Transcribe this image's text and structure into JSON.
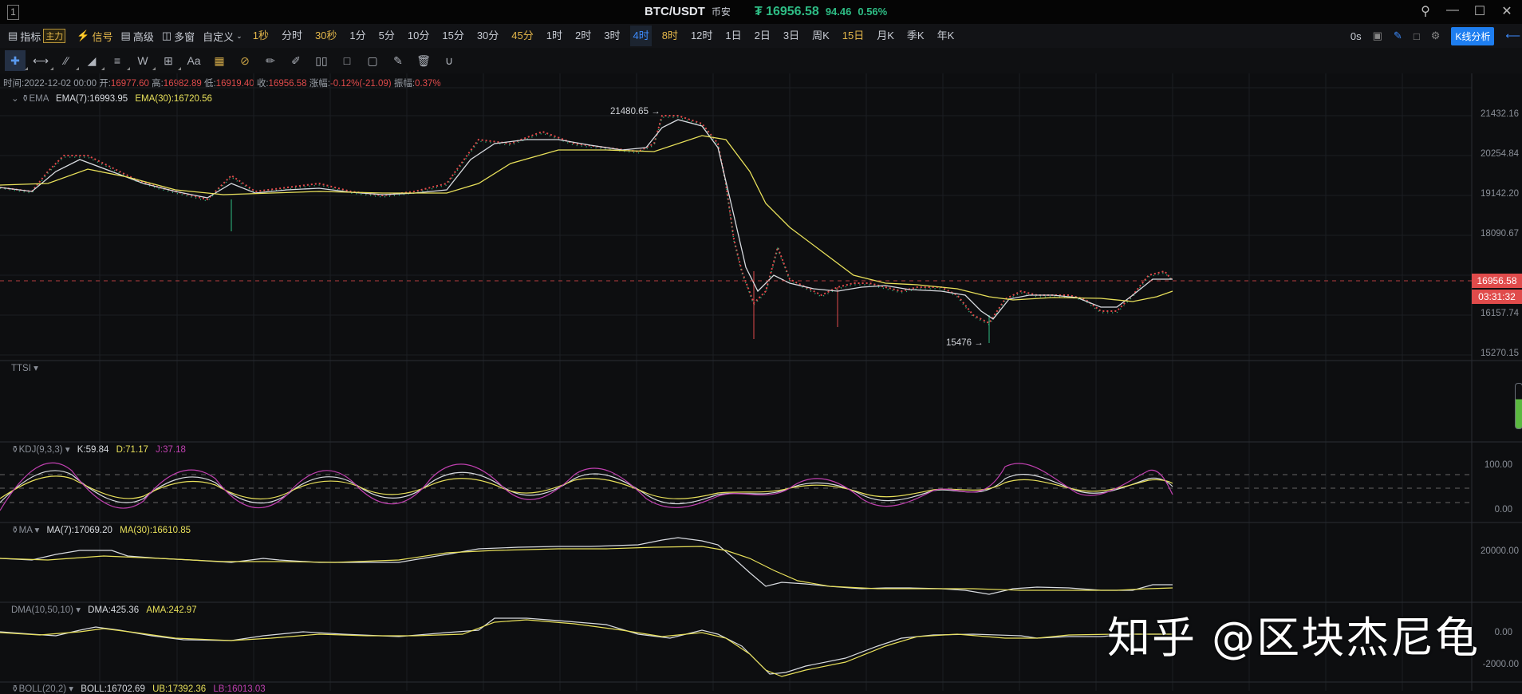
{
  "window": {
    "number": "1",
    "symbol": "BTC/USDT",
    "exchange": "币安",
    "price_icon": "₮",
    "last_price": "16956.58",
    "change": "94.46",
    "change_pct": "0.56%",
    "controls": {
      "search": "search-icon",
      "minimize": "minimize-icon",
      "maximize": "maximize-icon",
      "close": "close-icon"
    }
  },
  "toolbar": {
    "indicators": "指标",
    "main_badge": "主力",
    "signal": "信号",
    "advanced": "高级",
    "multi_window": "多窗",
    "custom": "自定义",
    "timeframes": [
      {
        "label": "1秒",
        "style": "gold"
      },
      {
        "label": "分时",
        "style": ""
      },
      {
        "label": "30秒",
        "style": "gold"
      },
      {
        "label": "1分",
        "style": ""
      },
      {
        "label": "5分",
        "style": ""
      },
      {
        "label": "10分",
        "style": ""
      },
      {
        "label": "15分",
        "style": ""
      },
      {
        "label": "30分",
        "style": ""
      },
      {
        "label": "45分",
        "style": "gold"
      },
      {
        "label": "1时",
        "style": ""
      },
      {
        "label": "2时",
        "style": ""
      },
      {
        "label": "3时",
        "style": ""
      },
      {
        "label": "4时",
        "style": "active"
      },
      {
        "label": "8时",
        "style": "gold"
      },
      {
        "label": "12时",
        "style": ""
      },
      {
        "label": "1日",
        "style": ""
      },
      {
        "label": "2日",
        "style": ""
      },
      {
        "label": "3日",
        "style": ""
      },
      {
        "label": "周K",
        "style": ""
      },
      {
        "label": "15日",
        "style": "gold"
      },
      {
        "label": "月K",
        "style": ""
      },
      {
        "label": "季K",
        "style": ""
      },
      {
        "label": "年K",
        "style": ""
      }
    ],
    "countdown": "0s",
    "k_analysis": "K线分析"
  },
  "drawing_tools": [
    "crosshair",
    "horizontal-ray",
    "parallel-lines",
    "triangle",
    "fib-lines",
    "wave",
    "add-box",
    "text",
    "ruler-gold",
    "measure-gold",
    "pencil",
    "brush",
    "candle-compare",
    "single-marker",
    "bookmark",
    "note",
    "trash",
    "magnet"
  ],
  "info": {
    "time_label": "时间:",
    "time": "2022-12-02 00:00",
    "open_label": "开:",
    "open": "16977.60",
    "high_label": "高:",
    "high": "16982.89",
    "low_label": "低:",
    "low": "16919.40",
    "close_label": "收:",
    "close": "16956.58",
    "change_label": "涨幅:",
    "change": "-0.12%(-21.09)",
    "amp_label": "振幅:",
    "amp": "0.37%"
  },
  "panes": {
    "ema": {
      "name": "EMA",
      "v1": "EMA(7):16993.95",
      "v2": "EMA(30):16720.56"
    },
    "ttsi": {
      "name": "TTSI"
    },
    "kdj": {
      "name": "KDJ(9,3,3)",
      "k": "K:59.84",
      "d": "D:71.17",
      "j": "J:37.18"
    },
    "ma": {
      "name": "MA",
      "v1": "MA(7):17069.20",
      "v2": "MA(30):16610.85"
    },
    "dma": {
      "name": "DMA(10,50,10)",
      "v1": "DMA:425.36",
      "v2": "AMA:242.97"
    },
    "boll": {
      "name": "BOLL(20,2)",
      "v1": "BOLL:16702.69",
      "v2": "UB:17392.36",
      "v3": "LB:16013.03"
    }
  },
  "price_axis": [
    "21432.16",
    "20254.84",
    "19142.20",
    "18090.67",
    "16157.74",
    "15270.15"
  ],
  "last_price_tag": "16956.58",
  "countdown_tag": "03:31:32",
  "kdj_axis": [
    "100.00",
    "0.00"
  ],
  "ma_axis": [
    "20000.00"
  ],
  "dma_axis": [
    "0.00",
    "-2000.00"
  ],
  "annotations": {
    "high": "21480.65 →",
    "low": "15476 →"
  },
  "watermark": "知乎 @区块杰尼龟",
  "colors": {
    "up": "#2ebd85",
    "down": "#e04b4b",
    "accent": "#1e7ef0",
    "gold": "#e3b64a",
    "ema7": "#d8dbe0",
    "ema30": "#e8e05a",
    "kdj_j": "#c040b0"
  }
}
